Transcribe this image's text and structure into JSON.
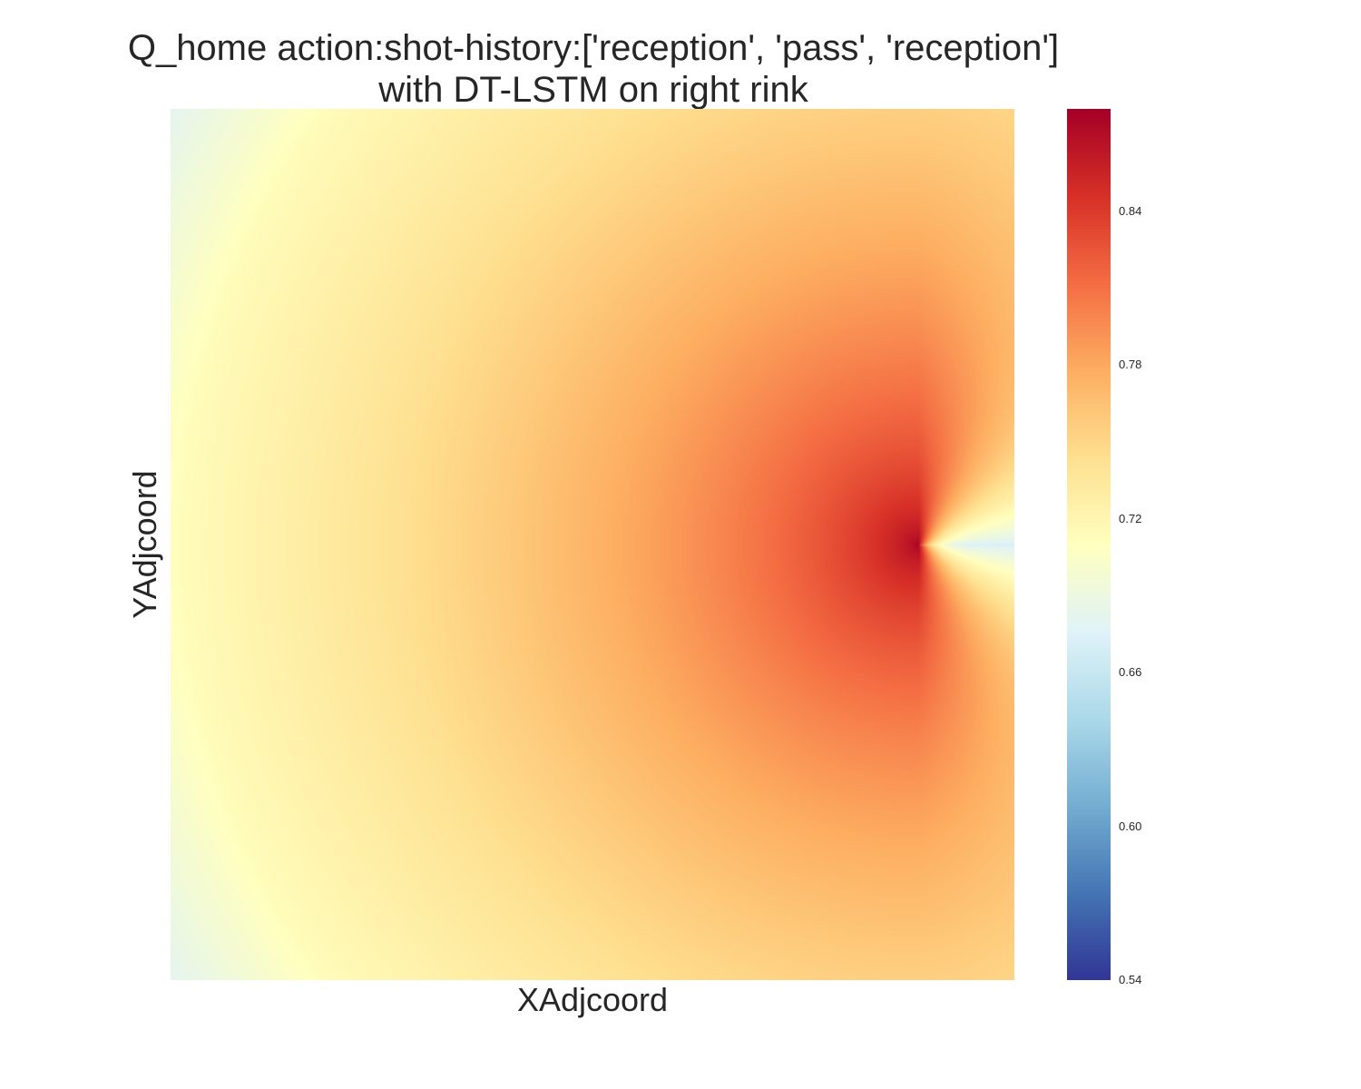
{
  "chart_data": {
    "type": "heatmap",
    "title_lines": [
      "Q_home action:shot-history:['reception', 'pass', 'reception']",
      "with DT-LSTM on right rink"
    ],
    "xlabel": "XAdjcoord",
    "ylabel": "YAdjcoord",
    "colormap": "RdYlBu_r",
    "colorbar": {
      "min": 0.54,
      "max": 0.88,
      "ticks": [
        0.54,
        0.6,
        0.66,
        0.72,
        0.78,
        0.84
      ],
      "tick_labels": [
        "0.54",
        "0.60",
        "0.66",
        "0.72",
        "0.78",
        "0.84"
      ],
      "stops": [
        "#313695",
        "#4575b4",
        "#74add1",
        "#abd9e9",
        "#e0f3f8",
        "#ffffbf",
        "#fee090",
        "#fdae61",
        "#f46d43",
        "#d73027",
        "#a50026"
      ]
    },
    "grid": false,
    "field": {
      "description_values": {
        "peak_value": 0.88,
        "peak_at_x_fraction": 0.885,
        "peak_at_y_fraction": 0.5,
        "behind_peak_value": 0.67,
        "left_edge_center_value": 0.715,
        "left_corner_value": 0.655,
        "right_edge_value": 0.745
      }
    }
  }
}
